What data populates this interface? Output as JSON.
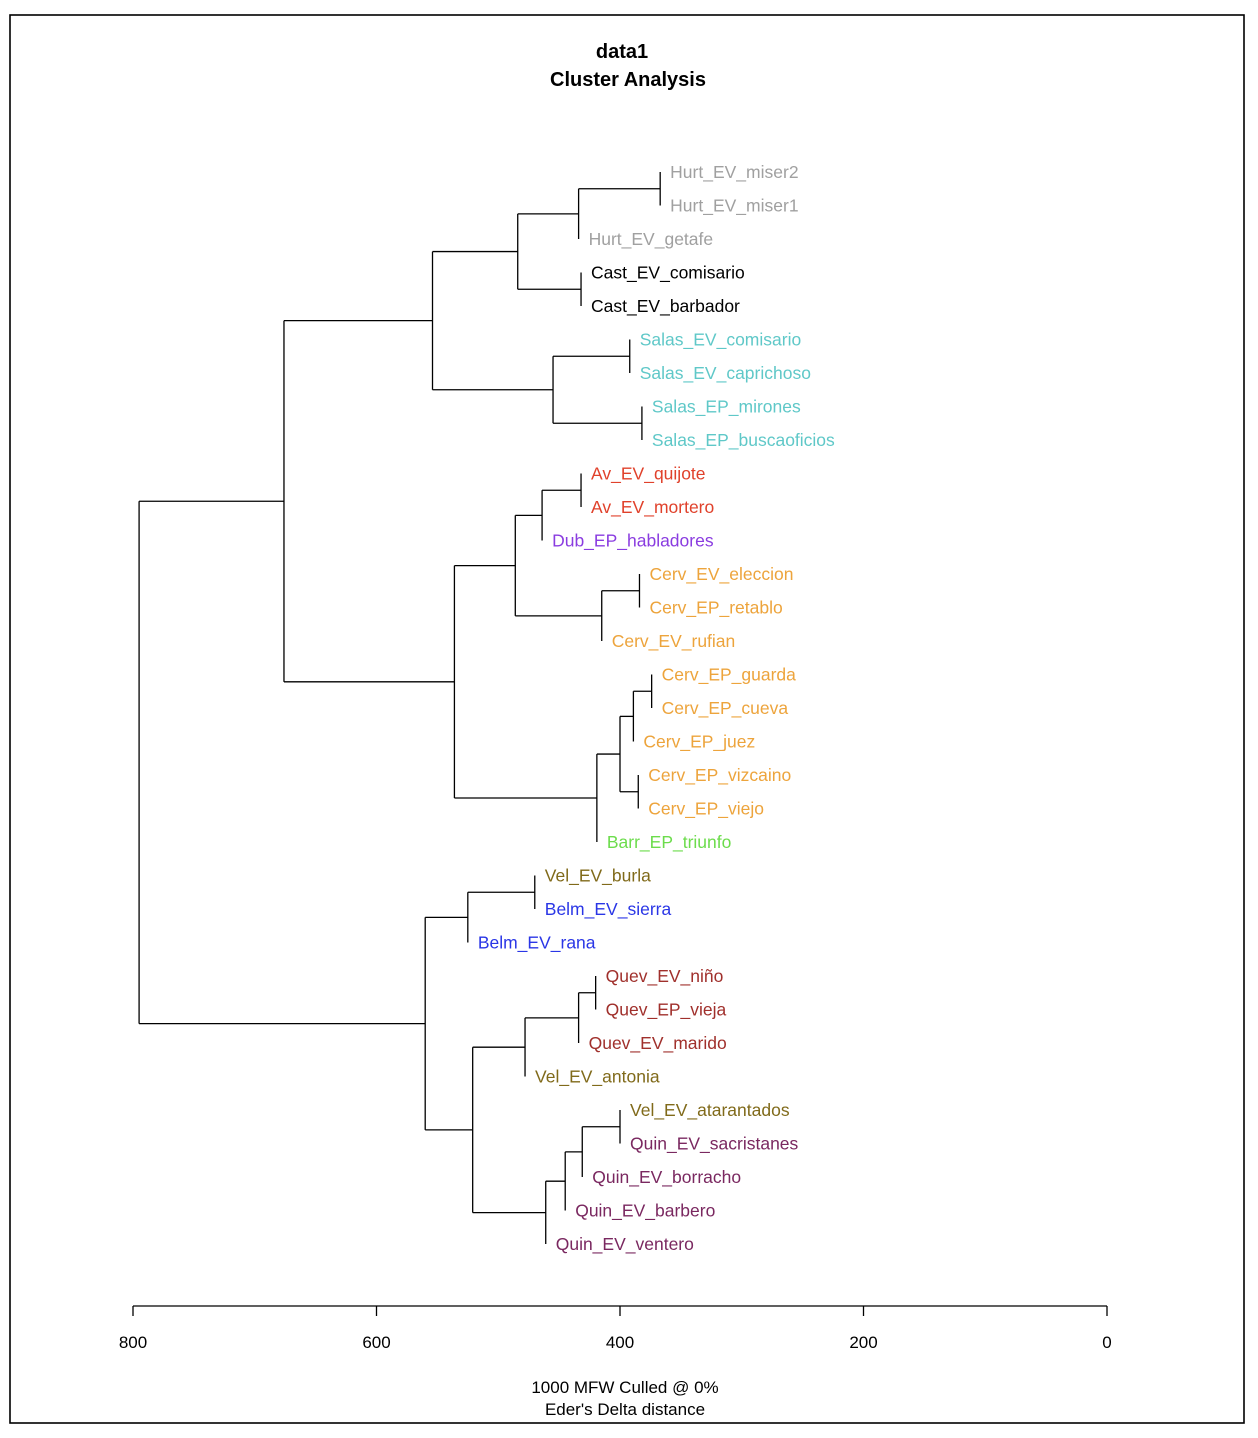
{
  "chart_data": {
    "type": "dendrogram",
    "title": "data1",
    "subtitle": "Cluster Analysis",
    "caption_line1": "1000 MFW  Culled @ 0%",
    "caption_line2": "Eder's Delta distance",
    "xlim": [
      800,
      0
    ],
    "ticks": [
      800,
      600,
      400,
      200,
      0
    ],
    "leaves": [
      {
        "label": "Hurt_EV_miser2",
        "color": "#a0a0a0"
      },
      {
        "label": "Hurt_EV_miser1",
        "color": "#a0a0a0"
      },
      {
        "label": "Hurt_EV_getafe",
        "color": "#a0a0a0"
      },
      {
        "label": "Cast_EV_comisario",
        "color": "#000000"
      },
      {
        "label": "Cast_EV_barbador",
        "color": "#000000"
      },
      {
        "label": "Salas_EV_comisario",
        "color": "#5fc8c8"
      },
      {
        "label": "Salas_EV_caprichoso",
        "color": "#5fc8c8"
      },
      {
        "label": "Salas_EP_mirones",
        "color": "#5fc8c8"
      },
      {
        "label": "Salas_EP_buscaoficios",
        "color": "#5fc8c8"
      },
      {
        "label": "Av_EV_quijote",
        "color": "#e0412b"
      },
      {
        "label": "Av_EV_mortero",
        "color": "#e0412b"
      },
      {
        "label": "Dub_EP_habladores",
        "color": "#8a3ce0"
      },
      {
        "label": "Cerv_EV_eleccion",
        "color": "#eda43c"
      },
      {
        "label": "Cerv_EP_retablo",
        "color": "#eda43c"
      },
      {
        "label": "Cerv_EV_rufian",
        "color": "#eda43c"
      },
      {
        "label": "Cerv_EP_guarda",
        "color": "#eda43c"
      },
      {
        "label": "Cerv_EP_cueva",
        "color": "#eda43c"
      },
      {
        "label": "Cerv_EP_juez",
        "color": "#eda43c"
      },
      {
        "label": "Cerv_EP_vizcaino",
        "color": "#eda43c"
      },
      {
        "label": "Cerv_EP_viejo",
        "color": "#eda43c"
      },
      {
        "label": "Barr_EP_triunfo",
        "color": "#6cdc4c"
      },
      {
        "label": "Vel_EV_burla",
        "color": "#806a1a"
      },
      {
        "label": "Belm_EV_sierra",
        "color": "#2a36e6"
      },
      {
        "label": "Belm_EV_rana",
        "color": "#2a36e6"
      },
      {
        "label": "Quev_EV_niño",
        "color": "#a0302c"
      },
      {
        "label": "Quev_EP_vieja",
        "color": "#a0302c"
      },
      {
        "label": "Quev_EV_marido",
        "color": "#a0302c"
      },
      {
        "label": "Vel_EV_antonia",
        "color": "#806a1a"
      },
      {
        "label": "Vel_EV_atarantados",
        "color": "#806a1a"
      },
      {
        "label": "Quin_EV_sacristanes",
        "color": "#7a2860"
      },
      {
        "label": "Quin_EV_borracho",
        "color": "#7a2860"
      },
      {
        "label": "Quin_EV_barbero",
        "color": "#7a2860"
      },
      {
        "label": "Quin_EV_ventero",
        "color": "#7a2860"
      }
    ],
    "merges": [
      {
        "id": "a",
        "height": 367,
        "children": [
          "L0",
          "L1"
        ]
      },
      {
        "id": "b",
        "height": 434,
        "children": [
          "a",
          "L2"
        ]
      },
      {
        "id": "c",
        "height": 432,
        "children": [
          "L3",
          "L4"
        ]
      },
      {
        "id": "d",
        "height": 484,
        "children": [
          "b",
          "c"
        ]
      },
      {
        "id": "e",
        "height": 392,
        "children": [
          "L5",
          "L6"
        ]
      },
      {
        "id": "f",
        "height": 382,
        "children": [
          "L7",
          "L8"
        ]
      },
      {
        "id": "g",
        "height": 455,
        "children": [
          "e",
          "f"
        ]
      },
      {
        "id": "h",
        "height": 554,
        "children": [
          "d",
          "g"
        ]
      },
      {
        "id": "i",
        "height": 432,
        "children": [
          "L9",
          "L10"
        ]
      },
      {
        "id": "j",
        "height": 464,
        "children": [
          "i",
          "L11"
        ]
      },
      {
        "id": "k",
        "height": 384,
        "children": [
          "L12",
          "L13"
        ]
      },
      {
        "id": "l",
        "height": 415,
        "children": [
          "k",
          "L14"
        ]
      },
      {
        "id": "m",
        "height": 486,
        "children": [
          "j",
          "l"
        ]
      },
      {
        "id": "n",
        "height": 374,
        "children": [
          "L15",
          "L16"
        ]
      },
      {
        "id": "o",
        "height": 389,
        "children": [
          "n",
          "L17"
        ]
      },
      {
        "id": "p",
        "height": 385,
        "children": [
          "L18",
          "L19"
        ]
      },
      {
        "id": "q",
        "height": 400,
        "children": [
          "o",
          "p"
        ]
      },
      {
        "id": "r",
        "height": 419,
        "children": [
          "q",
          "L20"
        ]
      },
      {
        "id": "s",
        "height": 536,
        "children": [
          "m",
          "r"
        ]
      },
      {
        "id": "t",
        "height": 676,
        "children": [
          "h",
          "s"
        ]
      },
      {
        "id": "u",
        "height": 470,
        "children": [
          "L21",
          "L22"
        ]
      },
      {
        "id": "v",
        "height": 525,
        "children": [
          "u",
          "L23"
        ]
      },
      {
        "id": "w",
        "height": 420,
        "children": [
          "L24",
          "L25"
        ]
      },
      {
        "id": "x",
        "height": 434,
        "children": [
          "w",
          "L26"
        ]
      },
      {
        "id": "y",
        "height": 478,
        "children": [
          "x",
          "L27"
        ]
      },
      {
        "id": "z",
        "height": 400,
        "children": [
          "L28",
          "L29"
        ]
      },
      {
        "id": "aa",
        "height": 431,
        "children": [
          "z",
          "L30"
        ]
      },
      {
        "id": "ab",
        "height": 445,
        "children": [
          "aa",
          "L31"
        ]
      },
      {
        "id": "ac",
        "height": 461,
        "children": [
          "ab",
          "L32"
        ]
      },
      {
        "id": "ad",
        "height": 521,
        "children": [
          "y",
          "ac"
        ]
      },
      {
        "id": "ae",
        "height": 560,
        "children": [
          "v",
          "ad"
        ]
      },
      {
        "id": "af",
        "height": 795,
        "children": [
          "t",
          "ae"
        ]
      }
    ]
  }
}
